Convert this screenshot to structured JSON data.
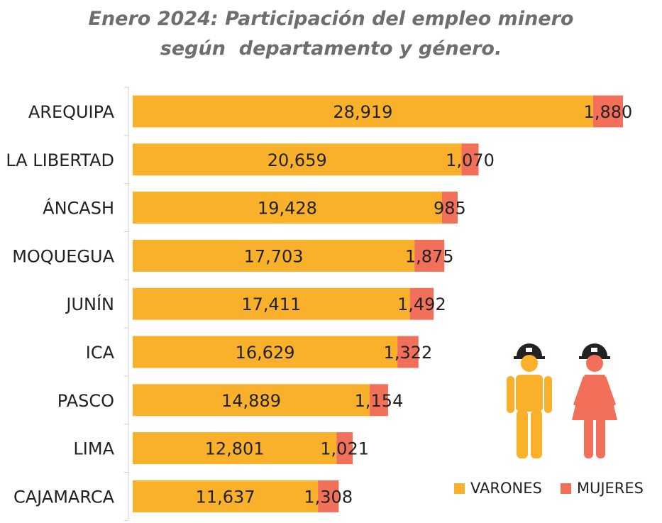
{
  "chart_data": {
    "type": "bar",
    "orientation": "horizontal",
    "stacked": true,
    "title": [
      "Enero 2024: Participación del empleo minero",
      "según  departamento y género."
    ],
    "categories": [
      "AREQUIPA",
      "LA LIBERTAD",
      "ÁNCASH",
      "MOQUEGUA",
      "JUNÍN",
      "ICA",
      "PASCO",
      "LIMA",
      "CAJAMARCA"
    ],
    "series": [
      {
        "name": "VARONES",
        "color": "#F9B12B",
        "values": [
          28919,
          20659,
          19428,
          17703,
          17411,
          16629,
          14889,
          12801,
          11637
        ],
        "labels": [
          "28,919",
          "20,659",
          "19,428",
          "17,703",
          "17,411",
          "16,629",
          "14,889",
          "12,801",
          "11,637"
        ]
      },
      {
        "name": "MUJERES",
        "color": "#F2705A",
        "values": [
          1880,
          1070,
          985,
          1875,
          1492,
          1322,
          1154,
          1021,
          1308
        ],
        "labels": [
          "1,880",
          "1,070",
          "985",
          "1,875",
          "1,492",
          "1,322",
          "1,154",
          "1,021",
          "1,308"
        ]
      }
    ],
    "xlim": [
      0,
      30799
    ],
    "legend_position": "bottom-right",
    "grid": false
  },
  "legend": {
    "varones": "VARONES",
    "mujeres": "MUJERES"
  },
  "icons": {
    "male": "male-miner-icon",
    "female": "female-miner-icon",
    "helmet_color": "#222222"
  }
}
